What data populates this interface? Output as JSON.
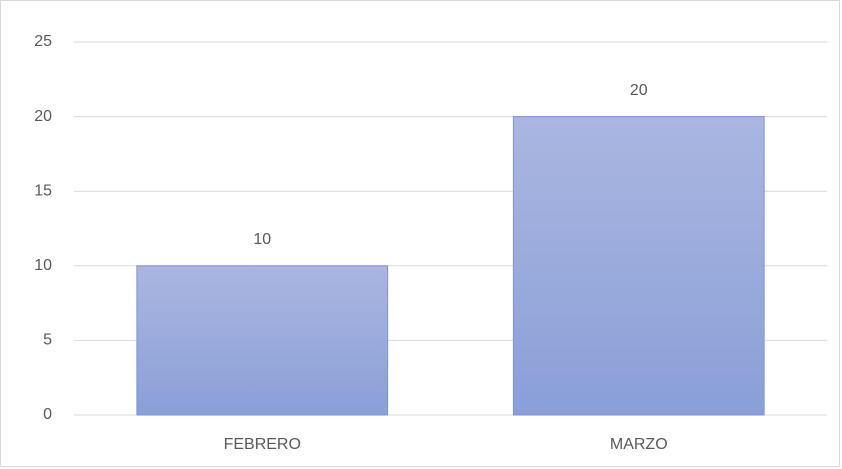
{
  "chart_data": {
    "type": "bar",
    "categories": [
      "FEBRERO",
      "MARZO"
    ],
    "values": [
      10,
      20
    ],
    "color": "#9aaadc",
    "ylim": [
      0,
      25
    ],
    "yticks": [
      0,
      5,
      10,
      15,
      20,
      25
    ],
    "grid": true,
    "data_labels": true
  }
}
